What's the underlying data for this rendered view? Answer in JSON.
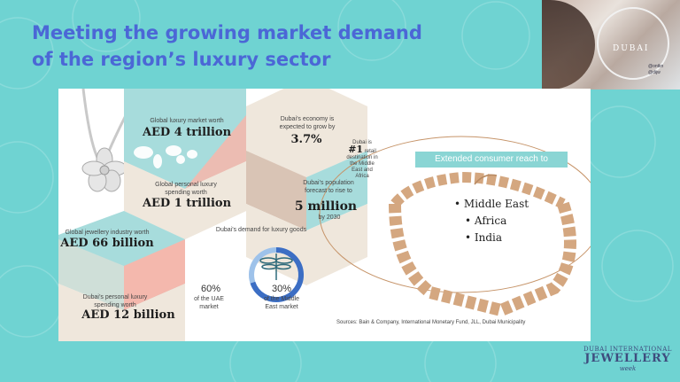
{
  "title": {
    "line1": "Meeting the growing market demand",
    "line2": "of the region’s luxury sector"
  },
  "brand_card": {
    "label": "DUBAI",
    "social": [
      "@ontkn",
      "@dijw"
    ]
  },
  "infographic": {
    "global_luxury": {
      "label": "Global luxury market worth",
      "value": "AED 4 trillion"
    },
    "personal_luxury": {
      "label": "Global personal luxury spending worth",
      "value": "AED 1 trillion"
    },
    "economy": {
      "label": "Dubai’s economy is expected to grow by",
      "value": "3.7%"
    },
    "retail": {
      "prefix": "Dubai is",
      "rank": "#1",
      "suffix": "retail destination in the Middle East and Africa"
    },
    "population": {
      "label": "Dubai’s population forecast to rise to",
      "value": "5 million",
      "year": "by 2030"
    },
    "jewellery": {
      "label": "Global jewellery industry worth",
      "value": "AED 66 billion"
    },
    "dubai_personal": {
      "label": "Dubai’s personal luxury spending worth",
      "value": "AED 12 billion"
    },
    "demand": {
      "title": "Dubai’s demand for luxury goods",
      "uae_pct": "60%",
      "uae_label": "of the UAE market",
      "me_pct": "30%",
      "me_label": "of the Middle East market"
    }
  },
  "reach": {
    "banner": "Extended consumer reach to",
    "markets": [
      "Middle East",
      "Africa",
      "India"
    ]
  },
  "sources": "Sources: Bain & Company, International Monetary Fund, JLL, Dubai Municipality",
  "logo": {
    "line1": "DUBAI INTERNATIONAL",
    "line2": "JEWELLERY",
    "line3": "week"
  },
  "colors": {
    "background": "#6fd3d2",
    "title": "#4b67d6",
    "hex_teal": "#a7dcdc",
    "hex_pink": "#f4b8ad",
    "hex_cream": "#efe7dc"
  }
}
